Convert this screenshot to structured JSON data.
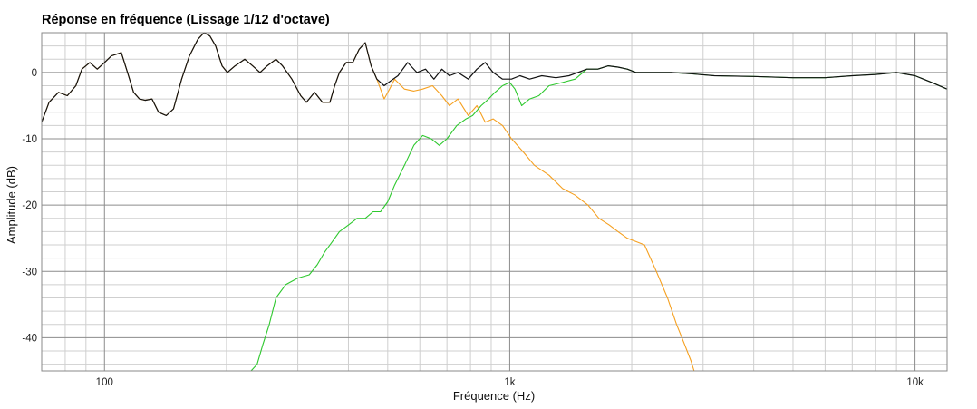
{
  "chart_data": {
    "type": "line",
    "title": "Réponse en fréquence (Lissage 1/12 d'octave)",
    "xlabel": "Fréquence (Hz)",
    "ylabel": "Amplitude (dB)",
    "x_scale": "log",
    "xlim": [
      70,
      12000
    ],
    "ylim": [
      -45,
      6
    ],
    "grid": true,
    "x_ticks": [
      {
        "value": 100,
        "label": "100"
      },
      {
        "value": 1000,
        "label": "1k"
      },
      {
        "value": 10000,
        "label": "10k"
      }
    ],
    "y_ticks": [
      {
        "value": 0,
        "label": "0"
      },
      {
        "value": -10,
        "label": "-10"
      },
      {
        "value": -20,
        "label": "-20"
      },
      {
        "value": -30,
        "label": "-30"
      },
      {
        "value": -40,
        "label": "-40"
      }
    ],
    "series": [
      {
        "color": "#f5a020",
        "points": [
          [
            70,
            -7.5
          ],
          [
            73,
            -4.5
          ],
          [
            77,
            -3
          ],
          [
            81,
            -3.5
          ],
          [
            85,
            -2
          ],
          [
            88,
            0.5
          ],
          [
            92,
            1.5
          ],
          [
            96,
            0.5
          ],
          [
            100,
            1.5
          ],
          [
            104,
            2.5
          ],
          [
            110,
            3
          ],
          [
            114,
            0
          ],
          [
            118,
            -3
          ],
          [
            122,
            -4
          ],
          [
            126,
            -4.2
          ],
          [
            131,
            -4
          ],
          [
            136,
            -6
          ],
          [
            142,
            -6.5
          ],
          [
            148,
            -5.5
          ],
          [
            155,
            -1
          ],
          [
            162,
            2.5
          ],
          [
            170,
            5
          ],
          [
            176,
            6
          ],
          [
            182,
            5.5
          ],
          [
            188,
            4
          ],
          [
            195,
            1
          ],
          [
            201,
            0
          ],
          [
            210,
            1
          ],
          [
            222,
            2
          ],
          [
            232,
            1
          ],
          [
            242,
            0
          ],
          [
            252,
            1
          ],
          [
            265,
            2
          ],
          [
            275,
            1
          ],
          [
            290,
            -1
          ],
          [
            305,
            -3.5
          ],
          [
            315,
            -4.5
          ],
          [
            330,
            -3
          ],
          [
            345,
            -4.5
          ],
          [
            360,
            -4.5
          ],
          [
            370,
            -2
          ],
          [
            380,
            0
          ],
          [
            395,
            1.5
          ],
          [
            410,
            1.5
          ],
          [
            425,
            3.5
          ],
          [
            440,
            4.5
          ],
          [
            455,
            1
          ],
          [
            470,
            -1
          ],
          [
            490,
            -4
          ],
          [
            505,
            -2.5
          ],
          [
            520,
            -1
          ],
          [
            550,
            -2.5
          ],
          [
            580,
            -2.8
          ],
          [
            610,
            -2.5
          ],
          [
            645,
            -2
          ],
          [
            680,
            -3.5
          ],
          [
            710,
            -5
          ],
          [
            745,
            -4
          ],
          [
            790,
            -6.5
          ],
          [
            830,
            -5
          ],
          [
            870,
            -7.5
          ],
          [
            910,
            -7
          ],
          [
            960,
            -8
          ],
          [
            1010,
            -10
          ],
          [
            1080,
            -12
          ],
          [
            1150,
            -14
          ],
          [
            1250,
            -15.5
          ],
          [
            1350,
            -17.5
          ],
          [
            1450,
            -18.5
          ],
          [
            1560,
            -20
          ],
          [
            1660,
            -22
          ],
          [
            1760,
            -23
          ],
          [
            1850,
            -24
          ],
          [
            1950,
            -25
          ],
          [
            2050,
            -25.5
          ],
          [
            2150,
            -26
          ],
          [
            2300,
            -30
          ],
          [
            2450,
            -34
          ],
          [
            2580,
            -38
          ],
          [
            2700,
            -41
          ],
          [
            2800,
            -43.5
          ],
          [
            2850,
            -45
          ]
        ]
      },
      {
        "color": "#2ec82e",
        "points": [
          [
            230,
            -45
          ],
          [
            238,
            -44
          ],
          [
            246,
            -41
          ],
          [
            255,
            -38
          ],
          [
            265,
            -34
          ],
          [
            280,
            -32
          ],
          [
            300,
            -31
          ],
          [
            320,
            -30.5
          ],
          [
            335,
            -29
          ],
          [
            350,
            -27
          ],
          [
            365,
            -25.5
          ],
          [
            380,
            -24
          ],
          [
            400,
            -23
          ],
          [
            420,
            -22
          ],
          [
            440,
            -22
          ],
          [
            460,
            -21
          ],
          [
            480,
            -21
          ],
          [
            500,
            -19.5
          ],
          [
            520,
            -17
          ],
          [
            550,
            -14
          ],
          [
            580,
            -11
          ],
          [
            610,
            -9.5
          ],
          [
            640,
            -10
          ],
          [
            670,
            -11
          ],
          [
            700,
            -10
          ],
          [
            740,
            -8
          ],
          [
            780,
            -7
          ],
          [
            810,
            -6.5
          ],
          [
            850,
            -5
          ],
          [
            880,
            -4.2
          ],
          [
            920,
            -3
          ],
          [
            960,
            -2
          ],
          [
            1000,
            -1.5
          ],
          [
            1030,
            -2.5
          ],
          [
            1070,
            -5
          ],
          [
            1120,
            -4
          ],
          [
            1180,
            -3.5
          ],
          [
            1250,
            -2
          ],
          [
            1350,
            -1.5
          ],
          [
            1450,
            -1
          ],
          [
            1550,
            0.5
          ],
          [
            1650,
            0.5
          ],
          [
            1750,
            1
          ],
          [
            1850,
            0.8
          ],
          [
            1950,
            0.5
          ],
          [
            2050,
            0
          ],
          [
            2150,
            0
          ],
          [
            2300,
            0
          ],
          [
            2500,
            0
          ],
          [
            2800,
            -0.2
          ],
          [
            3200,
            -0.5
          ],
          [
            4000,
            -0.6
          ],
          [
            5000,
            -0.8
          ],
          [
            6000,
            -0.8
          ],
          [
            7000,
            -0.5
          ],
          [
            8000,
            -0.3
          ],
          [
            9000,
            0
          ],
          [
            10000,
            -0.5
          ],
          [
            11000,
            -1.5
          ],
          [
            12000,
            -2.5
          ]
        ]
      },
      {
        "color": "#111111",
        "points": [
          [
            70,
            -7.5
          ],
          [
            73,
            -4.5
          ],
          [
            77,
            -3
          ],
          [
            81,
            -3.5
          ],
          [
            85,
            -2
          ],
          [
            88,
            0.5
          ],
          [
            92,
            1.5
          ],
          [
            96,
            0.5
          ],
          [
            100,
            1.5
          ],
          [
            104,
            2.5
          ],
          [
            110,
            3
          ],
          [
            114,
            0
          ],
          [
            118,
            -3
          ],
          [
            122,
            -4
          ],
          [
            126,
            -4.2
          ],
          [
            131,
            -4
          ],
          [
            136,
            -6
          ],
          [
            142,
            -6.5
          ],
          [
            148,
            -5.5
          ],
          [
            155,
            -1
          ],
          [
            162,
            2.5
          ],
          [
            170,
            5
          ],
          [
            176,
            6
          ],
          [
            182,
            5.5
          ],
          [
            188,
            4
          ],
          [
            195,
            1
          ],
          [
            201,
            0
          ],
          [
            210,
            1
          ],
          [
            222,
            2
          ],
          [
            232,
            1
          ],
          [
            242,
            0
          ],
          [
            252,
            1
          ],
          [
            265,
            2
          ],
          [
            275,
            1
          ],
          [
            290,
            -1
          ],
          [
            305,
            -3.5
          ],
          [
            315,
            -4.5
          ],
          [
            330,
            -3
          ],
          [
            345,
            -4.5
          ],
          [
            360,
            -4.5
          ],
          [
            370,
            -2
          ],
          [
            380,
            0
          ],
          [
            395,
            1.5
          ],
          [
            410,
            1.5
          ],
          [
            425,
            3.5
          ],
          [
            440,
            4.5
          ],
          [
            455,
            1
          ],
          [
            470,
            -1
          ],
          [
            490,
            -2
          ],
          [
            510,
            -1.2
          ],
          [
            530,
            -0.5
          ],
          [
            560,
            1.5
          ],
          [
            590,
            0
          ],
          [
            620,
            0.5
          ],
          [
            650,
            -1
          ],
          [
            680,
            0.5
          ],
          [
            710,
            -0.5
          ],
          [
            745,
            0
          ],
          [
            790,
            -1
          ],
          [
            830,
            0.5
          ],
          [
            870,
            1.5
          ],
          [
            910,
            0
          ],
          [
            960,
            -1
          ],
          [
            1010,
            -1
          ],
          [
            1060,
            -0.5
          ],
          [
            1120,
            -1
          ],
          [
            1200,
            -0.5
          ],
          [
            1300,
            -0.8
          ],
          [
            1400,
            -0.5
          ],
          [
            1550,
            0.5
          ],
          [
            1650,
            0.5
          ],
          [
            1750,
            1
          ],
          [
            1850,
            0.8
          ],
          [
            1950,
            0.5
          ],
          [
            2050,
            0
          ],
          [
            2150,
            0
          ],
          [
            2300,
            0
          ],
          [
            2500,
            0
          ],
          [
            2800,
            -0.2
          ],
          [
            3200,
            -0.5
          ],
          [
            4000,
            -0.6
          ],
          [
            5000,
            -0.8
          ],
          [
            6000,
            -0.8
          ],
          [
            7000,
            -0.5
          ],
          [
            8000,
            -0.3
          ],
          [
            9000,
            0
          ],
          [
            10000,
            -0.5
          ],
          [
            11000,
            -1.5
          ],
          [
            12000,
            -2.5
          ]
        ]
      }
    ]
  }
}
